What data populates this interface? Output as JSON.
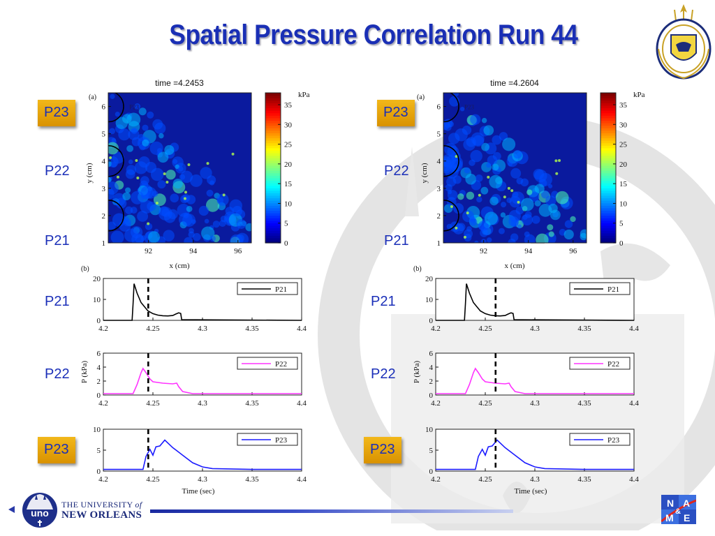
{
  "slide": {
    "title": "Spatial Pressure Correlation Run 44"
  },
  "footer": {
    "univ_line1": "THE UNIVERSITY",
    "univ_of": "of",
    "univ_line2": "NEW ORLEANS",
    "uno_mark": "uno",
    "name_logo": [
      "N",
      "A",
      "&",
      "M",
      "E"
    ]
  },
  "labels": {
    "left": {
      "map_p23": "P23",
      "map_p22": "P22",
      "map_p21": "P21",
      "ts_p21": "P21",
      "ts_p22": "P22",
      "ts_p23": "P23"
    },
    "right": {
      "map_p23": "P23",
      "map_p22": "P22",
      "map_p21": "P21",
      "ts_p21": "P21",
      "ts_p22": "P22",
      "ts_p23": "P23"
    }
  },
  "colors": {
    "title": "#1a2fb5",
    "label_text": "#1b2fb8",
    "label_box": "#f0b317",
    "p21_line": "#000000",
    "p22_line": "#ff33ff",
    "p23_line": "#1a1aff",
    "map_background": "#0a1a9e",
    "marker_line": "#000000"
  },
  "chart_data": [
    {
      "type": "heatmap",
      "panel_tag": "(a)",
      "title": "time =4.2453",
      "xlabel": "x (cm)",
      "ylabel": "y (cm)",
      "xlim": [
        90.2,
        96.6
      ],
      "ylim": [
        1,
        6.5
      ],
      "xticks": [
        92,
        94,
        96
      ],
      "yticks": [
        1,
        2,
        3,
        4,
        5,
        6
      ],
      "gauge_marker_label": "P23",
      "colorbar": {
        "label": "kPa",
        "min": 0,
        "max": 38,
        "ticks": [
          0,
          5,
          10,
          15,
          20,
          25,
          30,
          35
        ]
      }
    },
    {
      "type": "heatmap",
      "panel_tag": "(a)",
      "title": "time =4.2604",
      "xlabel": "x (cm)",
      "ylabel": "y (cm)",
      "xlim": [
        90.2,
        96.6
      ],
      "ylim": [
        1,
        6.5
      ],
      "xticks": [
        92,
        94,
        96
      ],
      "yticks": [
        1,
        2,
        3,
        4,
        5,
        6
      ],
      "gauge_marker_label": "P23",
      "colorbar": {
        "label": "kPa",
        "min": 0,
        "max": 38,
        "ticks": [
          0,
          5,
          10,
          15,
          20,
          25,
          30,
          35
        ]
      }
    },
    {
      "type": "line",
      "panel": "left",
      "panel_tag": "(b)",
      "xlabel": "Time (sec)",
      "ylabel": "P (kPa)",
      "time_marker": 4.2453,
      "subplots": [
        {
          "name": "P21",
          "ylim": [
            0,
            20
          ],
          "yticks": [
            0,
            10,
            20
          ],
          "xlim": [
            4.2,
            4.4
          ],
          "xticks": [
            4.2,
            4.25,
            4.3,
            4.35,
            4.4
          ],
          "x": [
            4.2,
            4.229,
            4.23,
            4.231,
            4.234,
            4.238,
            4.245,
            4.25,
            4.255,
            4.26,
            4.265,
            4.27,
            4.273,
            4.276,
            4.278,
            4.279,
            4.4
          ],
          "y": [
            0,
            0,
            8,
            17.5,
            13,
            8.5,
            4.5,
            3.2,
            2.5,
            2.2,
            2.1,
            2.3,
            3.0,
            3.6,
            3.3,
            0.3,
            0
          ]
        },
        {
          "name": "P22",
          "ylim": [
            0,
            6
          ],
          "yticks": [
            0,
            2,
            4,
            6
          ],
          "xlim": [
            4.2,
            4.4
          ],
          "xticks": [
            4.2,
            4.25,
            4.3,
            4.35,
            4.4
          ],
          "x": [
            4.2,
            4.23,
            4.234,
            4.238,
            4.24,
            4.243,
            4.247,
            4.25,
            4.26,
            4.27,
            4.274,
            4.276,
            4.28,
            4.29,
            4.3,
            4.35,
            4.4
          ],
          "y": [
            0.2,
            0.2,
            1.5,
            3.2,
            3.8,
            3.2,
            2.3,
            1.9,
            1.7,
            1.6,
            1.7,
            1.2,
            0.5,
            0.2,
            0.2,
            0.2,
            0.2
          ]
        },
        {
          "name": "P23",
          "ylim": [
            0,
            10
          ],
          "yticks": [
            0,
            5,
            10
          ],
          "xlim": [
            4.2,
            4.4
          ],
          "xticks": [
            4.2,
            4.25,
            4.3,
            4.35,
            4.4
          ],
          "x": [
            4.2,
            4.24,
            4.243,
            4.247,
            4.25,
            4.253,
            4.257,
            4.262,
            4.27,
            4.28,
            4.29,
            4.3,
            4.31,
            4.35,
            4.4
          ],
          "y": [
            0.4,
            0.4,
            3.5,
            5.2,
            3.8,
            5.8,
            6.0,
            7.4,
            5.6,
            3.8,
            2.0,
            1.0,
            0.6,
            0.4,
            0.4
          ]
        }
      ]
    },
    {
      "type": "line",
      "panel": "right",
      "panel_tag": "(b)",
      "xlabel": "Time (sec)",
      "ylabel": "P (kPa)",
      "time_marker": 4.2604,
      "subplots": [
        {
          "name": "P21",
          "ylim": [
            0,
            20
          ],
          "yticks": [
            0,
            10,
            20
          ],
          "xlim": [
            4.2,
            4.4
          ],
          "xticks": [
            4.2,
            4.25,
            4.3,
            4.35,
            4.4
          ],
          "x": [
            4.2,
            4.229,
            4.23,
            4.231,
            4.234,
            4.238,
            4.245,
            4.25,
            4.255,
            4.26,
            4.265,
            4.27,
            4.273,
            4.276,
            4.278,
            4.279,
            4.4
          ],
          "y": [
            0,
            0,
            8,
            17.5,
            13,
            8.5,
            4.5,
            3.2,
            2.5,
            2.2,
            2.1,
            2.3,
            3.0,
            3.6,
            3.3,
            0.3,
            0
          ]
        },
        {
          "name": "P22",
          "ylim": [
            0,
            6
          ],
          "yticks": [
            0,
            2,
            4,
            6
          ],
          "xlim": [
            4.2,
            4.4
          ],
          "xticks": [
            4.2,
            4.25,
            4.3,
            4.35,
            4.4
          ],
          "x": [
            4.2,
            4.23,
            4.234,
            4.238,
            4.24,
            4.243,
            4.247,
            4.25,
            4.26,
            4.27,
            4.274,
            4.276,
            4.28,
            4.29,
            4.3,
            4.35,
            4.4
          ],
          "y": [
            0.2,
            0.2,
            1.5,
            3.2,
            3.8,
            3.2,
            2.3,
            1.9,
            1.7,
            1.6,
            1.7,
            1.2,
            0.5,
            0.2,
            0.2,
            0.2,
            0.2
          ]
        },
        {
          "name": "P23",
          "ylim": [
            0,
            10
          ],
          "yticks": [
            0,
            5,
            10
          ],
          "xlim": [
            4.2,
            4.4
          ],
          "xticks": [
            4.2,
            4.25,
            4.3,
            4.35,
            4.4
          ],
          "x": [
            4.2,
            4.24,
            4.243,
            4.247,
            4.25,
            4.253,
            4.257,
            4.262,
            4.27,
            4.28,
            4.29,
            4.3,
            4.31,
            4.35,
            4.4
          ],
          "y": [
            0.4,
            0.4,
            3.5,
            5.2,
            3.8,
            5.8,
            6.0,
            7.4,
            5.6,
            3.8,
            2.0,
            1.0,
            0.6,
            0.4,
            0.4
          ]
        }
      ]
    }
  ]
}
